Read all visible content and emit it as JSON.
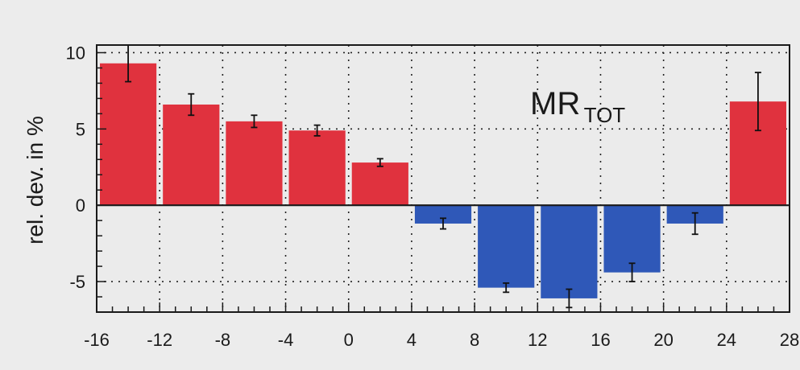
{
  "chart_data": {
    "type": "bar",
    "title": "MR",
    "title_subscript": "TOT",
    "xlabel": "",
    "ylabel": "rel. dev. in %",
    "xlim": [
      -16,
      28
    ],
    "ylim": [
      -7,
      10.5
    ],
    "x_ticks": [
      -16,
      -12,
      -8,
      -4,
      0,
      4,
      8,
      12,
      16,
      20,
      24,
      28
    ],
    "y_ticks": [
      -5,
      0,
      5,
      10
    ],
    "grid": true,
    "grid_style": "dotted",
    "bins": [
      {
        "x_start": -16,
        "x_end": -12,
        "value": 9.3,
        "err": 1.2
      },
      {
        "x_start": -12,
        "x_end": -8,
        "value": 6.6,
        "err": 0.7
      },
      {
        "x_start": -8,
        "x_end": -4,
        "value": 5.5,
        "err": 0.4
      },
      {
        "x_start": -4,
        "x_end": 0,
        "value": 4.9,
        "err": 0.35
      },
      {
        "x_start": 0,
        "x_end": 4,
        "value": 2.8,
        "err": 0.25
      },
      {
        "x_start": 4,
        "x_end": 8,
        "value": -1.2,
        "err": 0.35
      },
      {
        "x_start": 8,
        "x_end": 12,
        "value": -5.4,
        "err": 0.3
      },
      {
        "x_start": 12,
        "x_end": 16,
        "value": -6.1,
        "err": 0.6
      },
      {
        "x_start": 16,
        "x_end": 20,
        "value": -4.4,
        "err": 0.6
      },
      {
        "x_start": 20,
        "x_end": 24,
        "value": -1.2,
        "err": 0.7
      },
      {
        "x_start": 24,
        "x_end": 28,
        "value": 6.8,
        "err": 1.9
      }
    ],
    "colors": {
      "positive": "#e0323e",
      "negative": "#2f58b8",
      "plot_bg": "#ebebeb",
      "axis": "#1a1a1a"
    }
  }
}
